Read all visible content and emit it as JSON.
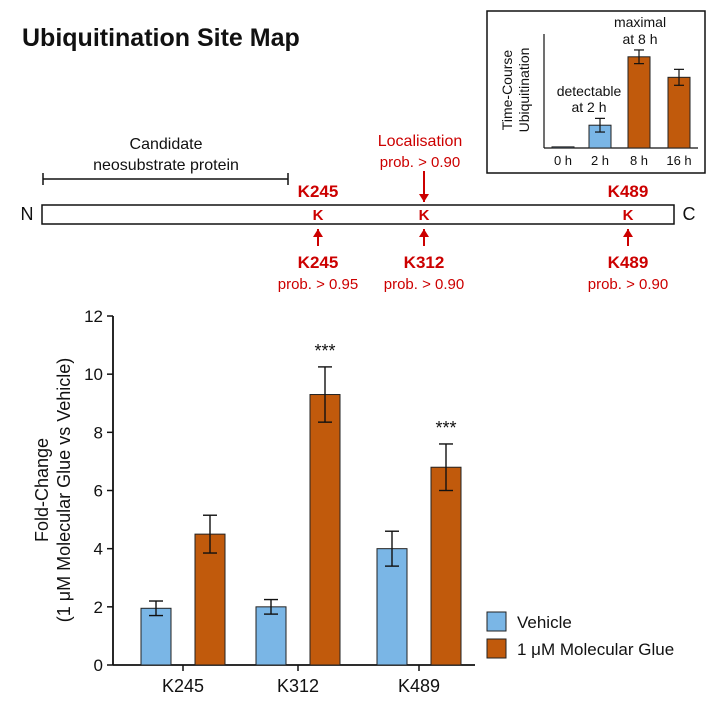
{
  "title": "Ubiquitination Site Map",
  "colors": {
    "vehicle": "#7ab6e6",
    "glue": "#c15a0c",
    "site_red": "#cc0000",
    "axis": "#111111"
  },
  "protein_map": {
    "n_label": "N",
    "c_label": "C",
    "domain_label": [
      "Candidate",
      "neosubstrate protein"
    ],
    "residue_letter": "K",
    "localisation_label": [
      "Localisation",
      "prob. > 0.90"
    ],
    "top_labels": [
      "K245",
      "K489"
    ],
    "sites": [
      {
        "name": "K245",
        "prob": "prob. > 0.95"
      },
      {
        "name": "K312",
        "prob": "prob. > 0.90"
      },
      {
        "name": "K489",
        "prob": "prob. > 0.90"
      }
    ]
  },
  "inset": {
    "ylabel": [
      "Time-Course",
      "Ubiquitination"
    ],
    "annotations": [
      {
        "lines": [
          "detectable",
          "at 2 h"
        ]
      },
      {
        "lines": [
          "maximal",
          "at 8 h"
        ]
      }
    ]
  },
  "legend": {
    "items": [
      "Vehicle",
      "1 μM Molecular Glue"
    ]
  },
  "chart_data": [
    {
      "type": "bar",
      "categories": [
        "K245",
        "K312",
        "K489"
      ],
      "series": [
        {
          "name": "Vehicle",
          "values": [
            1.95,
            2.0,
            4.0
          ],
          "errors": [
            0.25,
            0.25,
            0.6
          ]
        },
        {
          "name": "1 μM Molecular Glue",
          "values": [
            4.5,
            9.3,
            6.8
          ],
          "errors": [
            0.65,
            0.95,
            0.8
          ]
        }
      ],
      "significance": [
        "",
        "***",
        "***"
      ],
      "ylabel": [
        "Fold-Change",
        "(1 μM Molecular Glue vs Vehicle)"
      ],
      "ylim": [
        0,
        12
      ],
      "yticks": [
        "0",
        "2",
        "4",
        "6",
        "8",
        "10",
        "12"
      ],
      "grid": false,
      "legend_position": "bottom-right"
    },
    {
      "type": "bar",
      "categories": [
        "0 h",
        "2 h",
        "8 h",
        "16 h"
      ],
      "values": [
        0.01,
        0.2,
        0.8,
        0.62
      ],
      "errors": [
        0,
        0.06,
        0.06,
        0.07
      ],
      "bar_colors": [
        "#7ab6e6",
        "#7ab6e6",
        "#c15a0c",
        "#c15a0c"
      ],
      "ylim": [
        0,
        1
      ],
      "grid": false
    }
  ]
}
